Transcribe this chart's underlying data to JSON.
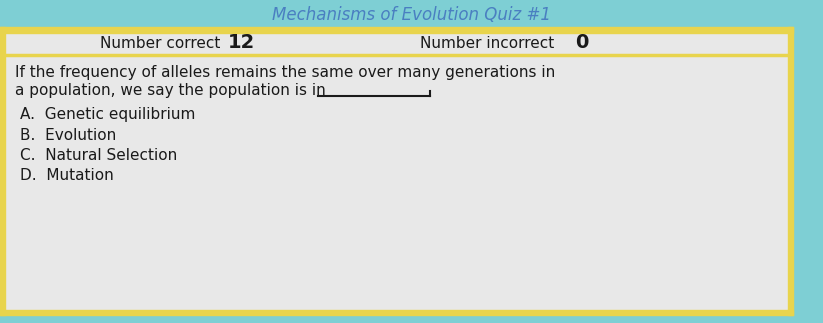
{
  "title": "Mechanisms of Evolution Quiz #1",
  "title_color": "#4a7fc1",
  "title_fontsize": 12,
  "bg_outer": "#7ecfd4",
  "bg_card": "#e8e8e8",
  "border_color": "#e8d44d",
  "number_correct_label": "Number correct",
  "number_correct_value": "12",
  "number_incorrect_label": "Number incorrect",
  "number_incorrect_value": "0",
  "question_line1": "If the frequency of alleles remains the same over many generations in",
  "question_line2": "a population, we say the population is in",
  "choices": [
    "A.  Genetic equilibrium",
    "B.  Evolution",
    "C.  Natural Selection",
    "D.  Mutation"
  ],
  "text_color": "#1a1a1a",
  "label_fontsize": 11,
  "choice_fontsize": 11,
  "num_fontsize": 14
}
